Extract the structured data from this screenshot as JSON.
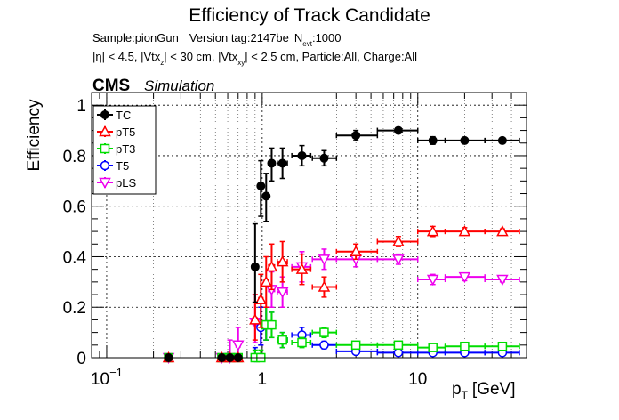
{
  "chart_data": {
    "type": "scatter",
    "title": "Efficiency of Track Candidate",
    "subtitle_line1": {
      "sample": "Sample:pionGun",
      "version": "Version tag:2147be",
      "nevt_prefix": "N",
      "nevt_sub": "evt",
      "nevt_value": ":1000"
    },
    "subtitle_line2": {
      "p1": "|η| < 4.5, |Vtx",
      "s1": "z",
      "p2": "| < 30 cm, |Vtx",
      "s2": "xy",
      "p3": "| < 2.5 cm, Particle:All, Charge:All"
    },
    "cms_label": "CMS",
    "simulation_label": "Simulation",
    "ylabel": "Efficiency",
    "xlabel_main": "p",
    "xlabel_sub": "T",
    "xlabel_unit": "[GeV]",
    "xscale": "log",
    "xlim": [
      0.08,
      50
    ],
    "ylim": [
      0,
      1.05
    ],
    "grid": true,
    "legend_position": "top-left",
    "x_ticks": [
      {
        "value": 0.1,
        "base": "10",
        "exp": "−1"
      },
      {
        "value": 1,
        "base": "1",
        "exp": ""
      },
      {
        "value": 10,
        "base": "10",
        "exp": ""
      }
    ],
    "y_ticks": [
      {
        "value": 0,
        "label": "0"
      },
      {
        "value": 0.2,
        "label": "0.2"
      },
      {
        "value": 0.4,
        "label": "0.4"
      },
      {
        "value": 0.6,
        "label": "0.6"
      },
      {
        "value": 0.8,
        "label": "0.8"
      },
      {
        "value": 1.0,
        "label": "1"
      }
    ],
    "series": [
      {
        "name": "TC",
        "color": "#000000",
        "marker": "filled-circle",
        "points": [
          {
            "x": 0.25,
            "xl": 0.24,
            "xh": 0.26,
            "y": 0.0,
            "yl": 0.0,
            "yh": 0.0
          },
          {
            "x": 0.55,
            "xl": 0.53,
            "xh": 0.57,
            "y": 0.0,
            "yl": 0.0,
            "yh": 0.0
          },
          {
            "x": 0.62,
            "xl": 0.6,
            "xh": 0.64,
            "y": 0.0,
            "yl": 0.0,
            "yh": 0.0
          },
          {
            "x": 0.7,
            "xl": 0.68,
            "xh": 0.72,
            "y": 0.0,
            "yl": 0.0,
            "yh": 0.0
          },
          {
            "x": 0.9,
            "xl": 0.87,
            "xh": 0.93,
            "y": 0.36,
            "yl": 0.22,
            "yh": 0.53
          },
          {
            "x": 0.98,
            "xl": 0.95,
            "xh": 1.01,
            "y": 0.68,
            "yl": 0.56,
            "yh": 0.78
          },
          {
            "x": 1.06,
            "xl": 1.03,
            "xh": 1.09,
            "y": 0.64,
            "yl": 0.54,
            "yh": 0.73
          },
          {
            "x": 1.15,
            "xl": 1.1,
            "xh": 1.2,
            "y": 0.77,
            "yl": 0.7,
            "yh": 0.83
          },
          {
            "x": 1.35,
            "xl": 1.25,
            "xh": 1.45,
            "y": 0.77,
            "yl": 0.71,
            "yh": 0.83
          },
          {
            "x": 1.8,
            "xl": 1.55,
            "xh": 2.05,
            "y": 0.8,
            "yl": 0.76,
            "yh": 0.84
          },
          {
            "x": 2.5,
            "xl": 2.1,
            "xh": 3.0,
            "y": 0.79,
            "yl": 0.76,
            "yh": 0.82
          },
          {
            "x": 4.0,
            "xl": 3.0,
            "xh": 5.5,
            "y": 0.88,
            "yl": 0.86,
            "yh": 0.9
          },
          {
            "x": 7.5,
            "xl": 5.5,
            "xh": 10.0,
            "y": 0.9,
            "yl": 0.89,
            "yh": 0.91
          },
          {
            "x": 12.5,
            "xl": 10.0,
            "xh": 15.0,
            "y": 0.86,
            "yl": 0.845,
            "yh": 0.875
          },
          {
            "x": 20.0,
            "xl": 15.0,
            "xh": 27.0,
            "y": 0.86,
            "yl": 0.85,
            "yh": 0.87
          },
          {
            "x": 35.0,
            "xl": 27.0,
            "xh": 45.0,
            "y": 0.86,
            "yl": 0.85,
            "yh": 0.87
          }
        ]
      },
      {
        "name": "pT5",
        "color": "#ff0000",
        "marker": "open-triangle",
        "points": [
          {
            "x": 0.25,
            "xl": 0.24,
            "xh": 0.26,
            "y": 0.0,
            "yl": 0.0,
            "yh": 0.0
          },
          {
            "x": 0.55,
            "xl": 0.53,
            "xh": 0.57,
            "y": 0.0,
            "yl": 0.0,
            "yh": 0.0
          },
          {
            "x": 0.62,
            "xl": 0.6,
            "xh": 0.64,
            "y": 0.0,
            "yl": 0.0,
            "yh": 0.0
          },
          {
            "x": 0.7,
            "xl": 0.68,
            "xh": 0.72,
            "y": 0.0,
            "yl": 0.0,
            "yh": 0.0
          },
          {
            "x": 0.9,
            "xl": 0.87,
            "xh": 0.93,
            "y": 0.15,
            "yl": 0.07,
            "yh": 0.25
          },
          {
            "x": 0.98,
            "xl": 0.95,
            "xh": 1.01,
            "y": 0.23,
            "yl": 0.12,
            "yh": 0.33
          },
          {
            "x": 1.06,
            "xl": 1.03,
            "xh": 1.09,
            "y": 0.3,
            "yl": 0.2,
            "yh": 0.4
          },
          {
            "x": 1.15,
            "xl": 1.1,
            "xh": 1.2,
            "y": 0.36,
            "yl": 0.27,
            "yh": 0.45
          },
          {
            "x": 1.35,
            "xl": 1.25,
            "xh": 1.45,
            "y": 0.38,
            "yl": 0.3,
            "yh": 0.46
          },
          {
            "x": 1.8,
            "xl": 1.55,
            "xh": 2.05,
            "y": 0.35,
            "yl": 0.29,
            "yh": 0.41
          },
          {
            "x": 2.5,
            "xl": 2.1,
            "xh": 3.0,
            "y": 0.28,
            "yl": 0.24,
            "yh": 0.32
          },
          {
            "x": 4.0,
            "xl": 3.0,
            "xh": 5.5,
            "y": 0.42,
            "yl": 0.39,
            "yh": 0.45
          },
          {
            "x": 7.5,
            "xl": 5.5,
            "xh": 10.0,
            "y": 0.46,
            "yl": 0.44,
            "yh": 0.48
          },
          {
            "x": 12.5,
            "xl": 10.0,
            "xh": 15.0,
            "y": 0.5,
            "yl": 0.48,
            "yh": 0.52
          },
          {
            "x": 20.0,
            "xl": 15.0,
            "xh": 27.0,
            "y": 0.5,
            "yl": 0.485,
            "yh": 0.515
          },
          {
            "x": 35.0,
            "xl": 27.0,
            "xh": 45.0,
            "y": 0.5,
            "yl": 0.49,
            "yh": 0.51
          }
        ]
      },
      {
        "name": "pT3",
        "color": "#00dd00",
        "marker": "open-square",
        "points": [
          {
            "x": 0.25,
            "xl": 0.24,
            "xh": 0.26,
            "y": 0.0,
            "yl": 0.0,
            "yh": 0.0
          },
          {
            "x": 0.55,
            "xl": 0.53,
            "xh": 0.57,
            "y": 0.0,
            "yl": 0.0,
            "yh": 0.0
          },
          {
            "x": 0.62,
            "xl": 0.6,
            "xh": 0.64,
            "y": 0.0,
            "yl": 0.0,
            "yh": 0.0
          },
          {
            "x": 0.7,
            "xl": 0.68,
            "xh": 0.72,
            "y": 0.0,
            "yl": 0.0,
            "yh": 0.0
          },
          {
            "x": 0.9,
            "xl": 0.87,
            "xh": 0.93,
            "y": 0.0,
            "yl": 0.0,
            "yh": 0.03
          },
          {
            "x": 0.98,
            "xl": 0.95,
            "xh": 1.01,
            "y": 0.0,
            "yl": 0.0,
            "yh": 0.03
          },
          {
            "x": 1.06,
            "xl": 1.03,
            "xh": 1.09,
            "y": 0.13,
            "yl": 0.07,
            "yh": 0.2
          },
          {
            "x": 1.15,
            "xl": 1.1,
            "xh": 1.2,
            "y": 0.13,
            "yl": 0.08,
            "yh": 0.18
          },
          {
            "x": 1.35,
            "xl": 1.25,
            "xh": 1.45,
            "y": 0.07,
            "yl": 0.04,
            "yh": 0.1
          },
          {
            "x": 1.8,
            "xl": 1.55,
            "xh": 2.05,
            "y": 0.06,
            "yl": 0.04,
            "yh": 0.08
          },
          {
            "x": 2.5,
            "xl": 2.1,
            "xh": 3.0,
            "y": 0.1,
            "yl": 0.08,
            "yh": 0.12
          },
          {
            "x": 4.0,
            "xl": 3.0,
            "xh": 5.5,
            "y": 0.05,
            "yl": 0.04,
            "yh": 0.06
          },
          {
            "x": 7.5,
            "xl": 5.5,
            "xh": 10.0,
            "y": 0.05,
            "yl": 0.04,
            "yh": 0.06
          },
          {
            "x": 12.5,
            "xl": 10.0,
            "xh": 15.0,
            "y": 0.04,
            "yl": 0.033,
            "yh": 0.047
          },
          {
            "x": 20.0,
            "xl": 15.0,
            "xh": 27.0,
            "y": 0.045,
            "yl": 0.04,
            "yh": 0.05
          },
          {
            "x": 35.0,
            "xl": 27.0,
            "xh": 45.0,
            "y": 0.045,
            "yl": 0.04,
            "yh": 0.05
          }
        ]
      },
      {
        "name": "T5",
        "color": "#0000ff",
        "marker": "open-circle",
        "points": [
          {
            "x": 0.25,
            "xl": 0.24,
            "xh": 0.26,
            "y": 0.0,
            "yl": 0.0,
            "yh": 0.0
          },
          {
            "x": 0.55,
            "xl": 0.53,
            "xh": 0.57,
            "y": 0.0,
            "yl": 0.0,
            "yh": 0.0
          },
          {
            "x": 0.62,
            "xl": 0.6,
            "xh": 0.64,
            "y": 0.0,
            "yl": 0.0,
            "yh": 0.0
          },
          {
            "x": 0.7,
            "xl": 0.68,
            "xh": 0.72,
            "y": 0.0,
            "yl": 0.0,
            "yh": 0.0
          },
          {
            "x": 0.9,
            "xl": 0.87,
            "xh": 0.93,
            "y": 0.0,
            "yl": 0.0,
            "yh": 0.04
          },
          {
            "x": 0.98,
            "xl": 0.95,
            "xh": 1.01,
            "y": 0.12,
            "yl": 0.05,
            "yh": 0.2
          },
          {
            "x": 1.06,
            "xl": 1.03,
            "xh": 1.09,
            "y": 0.13,
            "yl": 0.07,
            "yh": 0.2
          },
          {
            "x": 1.15,
            "xl": 1.1,
            "xh": 1.2,
            "y": 0.13,
            "yl": 0.08,
            "yh": 0.18
          },
          {
            "x": 1.35,
            "xl": 1.25,
            "xh": 1.45,
            "y": 0.07,
            "yl": 0.04,
            "yh": 0.1
          },
          {
            "x": 1.8,
            "xl": 1.55,
            "xh": 2.05,
            "y": 0.09,
            "yl": 0.06,
            "yh": 0.12
          },
          {
            "x": 2.5,
            "xl": 2.1,
            "xh": 3.0,
            "y": 0.05,
            "yl": 0.035,
            "yh": 0.065
          },
          {
            "x": 4.0,
            "xl": 3.0,
            "xh": 5.5,
            "y": 0.025,
            "yl": 0.015,
            "yh": 0.035
          },
          {
            "x": 7.5,
            "xl": 5.5,
            "xh": 10.0,
            "y": 0.02,
            "yl": 0.013,
            "yh": 0.027
          },
          {
            "x": 12.5,
            "xl": 10.0,
            "xh": 15.0,
            "y": 0.02,
            "yl": 0.014,
            "yh": 0.026
          },
          {
            "x": 20.0,
            "xl": 15.0,
            "xh": 27.0,
            "y": 0.02,
            "yl": 0.015,
            "yh": 0.025
          },
          {
            "x": 35.0,
            "xl": 27.0,
            "xh": 45.0,
            "y": 0.02,
            "yl": 0.016,
            "yh": 0.024
          }
        ]
      },
      {
        "name": "pLS",
        "color": "#ee00ee",
        "marker": "open-down-triangle",
        "points": [
          {
            "x": 0.25,
            "xl": 0.24,
            "xh": 0.26,
            "y": 0.0,
            "yl": 0.0,
            "yh": 0.0
          },
          {
            "x": 0.55,
            "xl": 0.53,
            "xh": 0.57,
            "y": 0.0,
            "yl": 0.0,
            "yh": 0.0
          },
          {
            "x": 0.62,
            "xl": 0.6,
            "xh": 0.64,
            "y": 0.0,
            "yl": 0.0,
            "yh": 0.07
          },
          {
            "x": 0.7,
            "xl": 0.68,
            "xh": 0.72,
            "y": 0.05,
            "yl": 0.0,
            "yh": 0.12
          },
          {
            "x": 0.9,
            "xl": 0.87,
            "xh": 0.93,
            "y": 0.14,
            "yl": 0.06,
            "yh": 0.25
          },
          {
            "x": 0.98,
            "xl": 0.95,
            "xh": 1.01,
            "y": 0.12,
            "yl": 0.05,
            "yh": 0.2
          },
          {
            "x": 1.06,
            "xl": 1.03,
            "xh": 1.09,
            "y": 0.13,
            "yl": 0.07,
            "yh": 0.2
          },
          {
            "x": 1.15,
            "xl": 1.1,
            "xh": 1.2,
            "y": 0.27,
            "yl": 0.2,
            "yh": 0.34
          },
          {
            "x": 1.35,
            "xl": 1.25,
            "xh": 1.45,
            "y": 0.26,
            "yl": 0.2,
            "yh": 0.32
          },
          {
            "x": 1.8,
            "xl": 1.55,
            "xh": 2.05,
            "y": 0.36,
            "yl": 0.3,
            "yh": 0.42
          },
          {
            "x": 2.5,
            "xl": 2.1,
            "xh": 3.0,
            "y": 0.39,
            "yl": 0.35,
            "yh": 0.43
          },
          {
            "x": 4.0,
            "xl": 3.0,
            "xh": 5.5,
            "y": 0.39,
            "yl": 0.36,
            "yh": 0.42
          },
          {
            "x": 7.5,
            "xl": 5.5,
            "xh": 10.0,
            "y": 0.39,
            "yl": 0.37,
            "yh": 0.41
          },
          {
            "x": 12.5,
            "xl": 10.0,
            "xh": 15.0,
            "y": 0.31,
            "yl": 0.29,
            "yh": 0.33
          },
          {
            "x": 20.0,
            "xl": 15.0,
            "xh": 27.0,
            "y": 0.32,
            "yl": 0.305,
            "yh": 0.335
          },
          {
            "x": 35.0,
            "xl": 27.0,
            "xh": 45.0,
            "y": 0.31,
            "yl": 0.3,
            "yh": 0.32
          }
        ]
      }
    ]
  }
}
